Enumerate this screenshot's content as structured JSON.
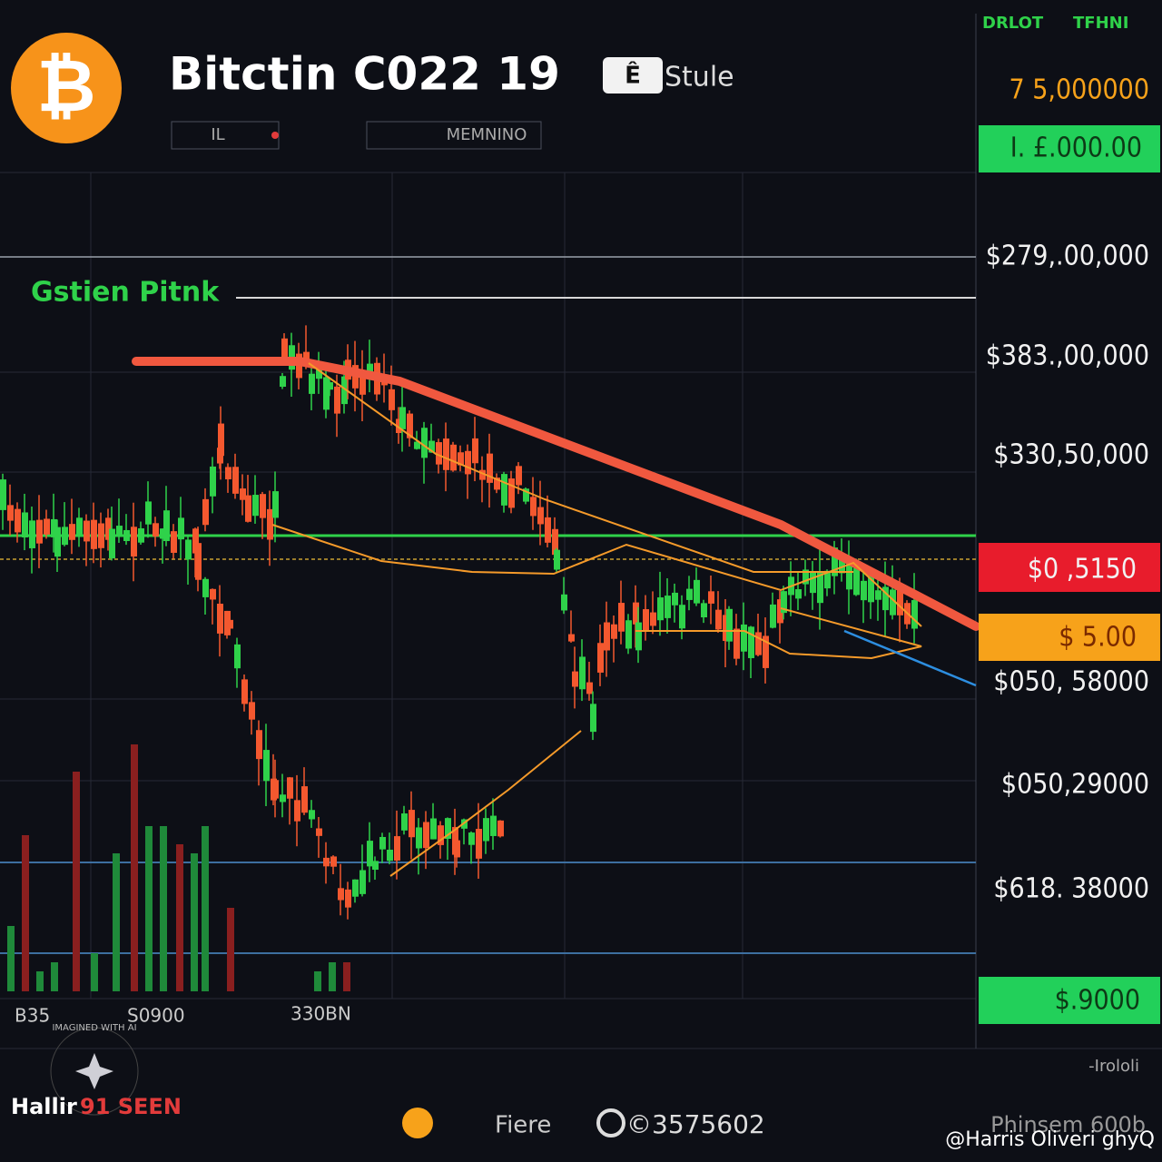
{
  "header": {
    "logo": "₿",
    "title": "Bitctin C022 19",
    "badge_icon": "Ê",
    "badge": "Stule",
    "tabs": [
      "IL",
      "MEMNINO"
    ],
    "top_right": [
      "DRLOT",
      "TFHNI"
    ]
  },
  "chart": {
    "label": "Gstien Pitnk",
    "x_labels": [
      "B35",
      "S0900",
      "330BN"
    ]
  },
  "price_panel": [
    "7 5,000000",
    "I. £.000.00",
    "$279,.00,000",
    "$383.,00,000",
    "$330,50,000",
    "$0 ,5150",
    "$ 5.00",
    "$050, 58000",
    "$050,29000",
    "$618. 38000",
    "$.9000"
  ],
  "footer": {
    "watermark": "IMAGINED WITH AI",
    "brand": "Hallir",
    "brand_accent": "91 SEEN",
    "tab": "Fiere",
    "counter": "©3575602",
    "right_small": "-Irololi",
    "right": "Phinsem 600b",
    "credit": "@Harris Oliveri ghyQ"
  }
}
